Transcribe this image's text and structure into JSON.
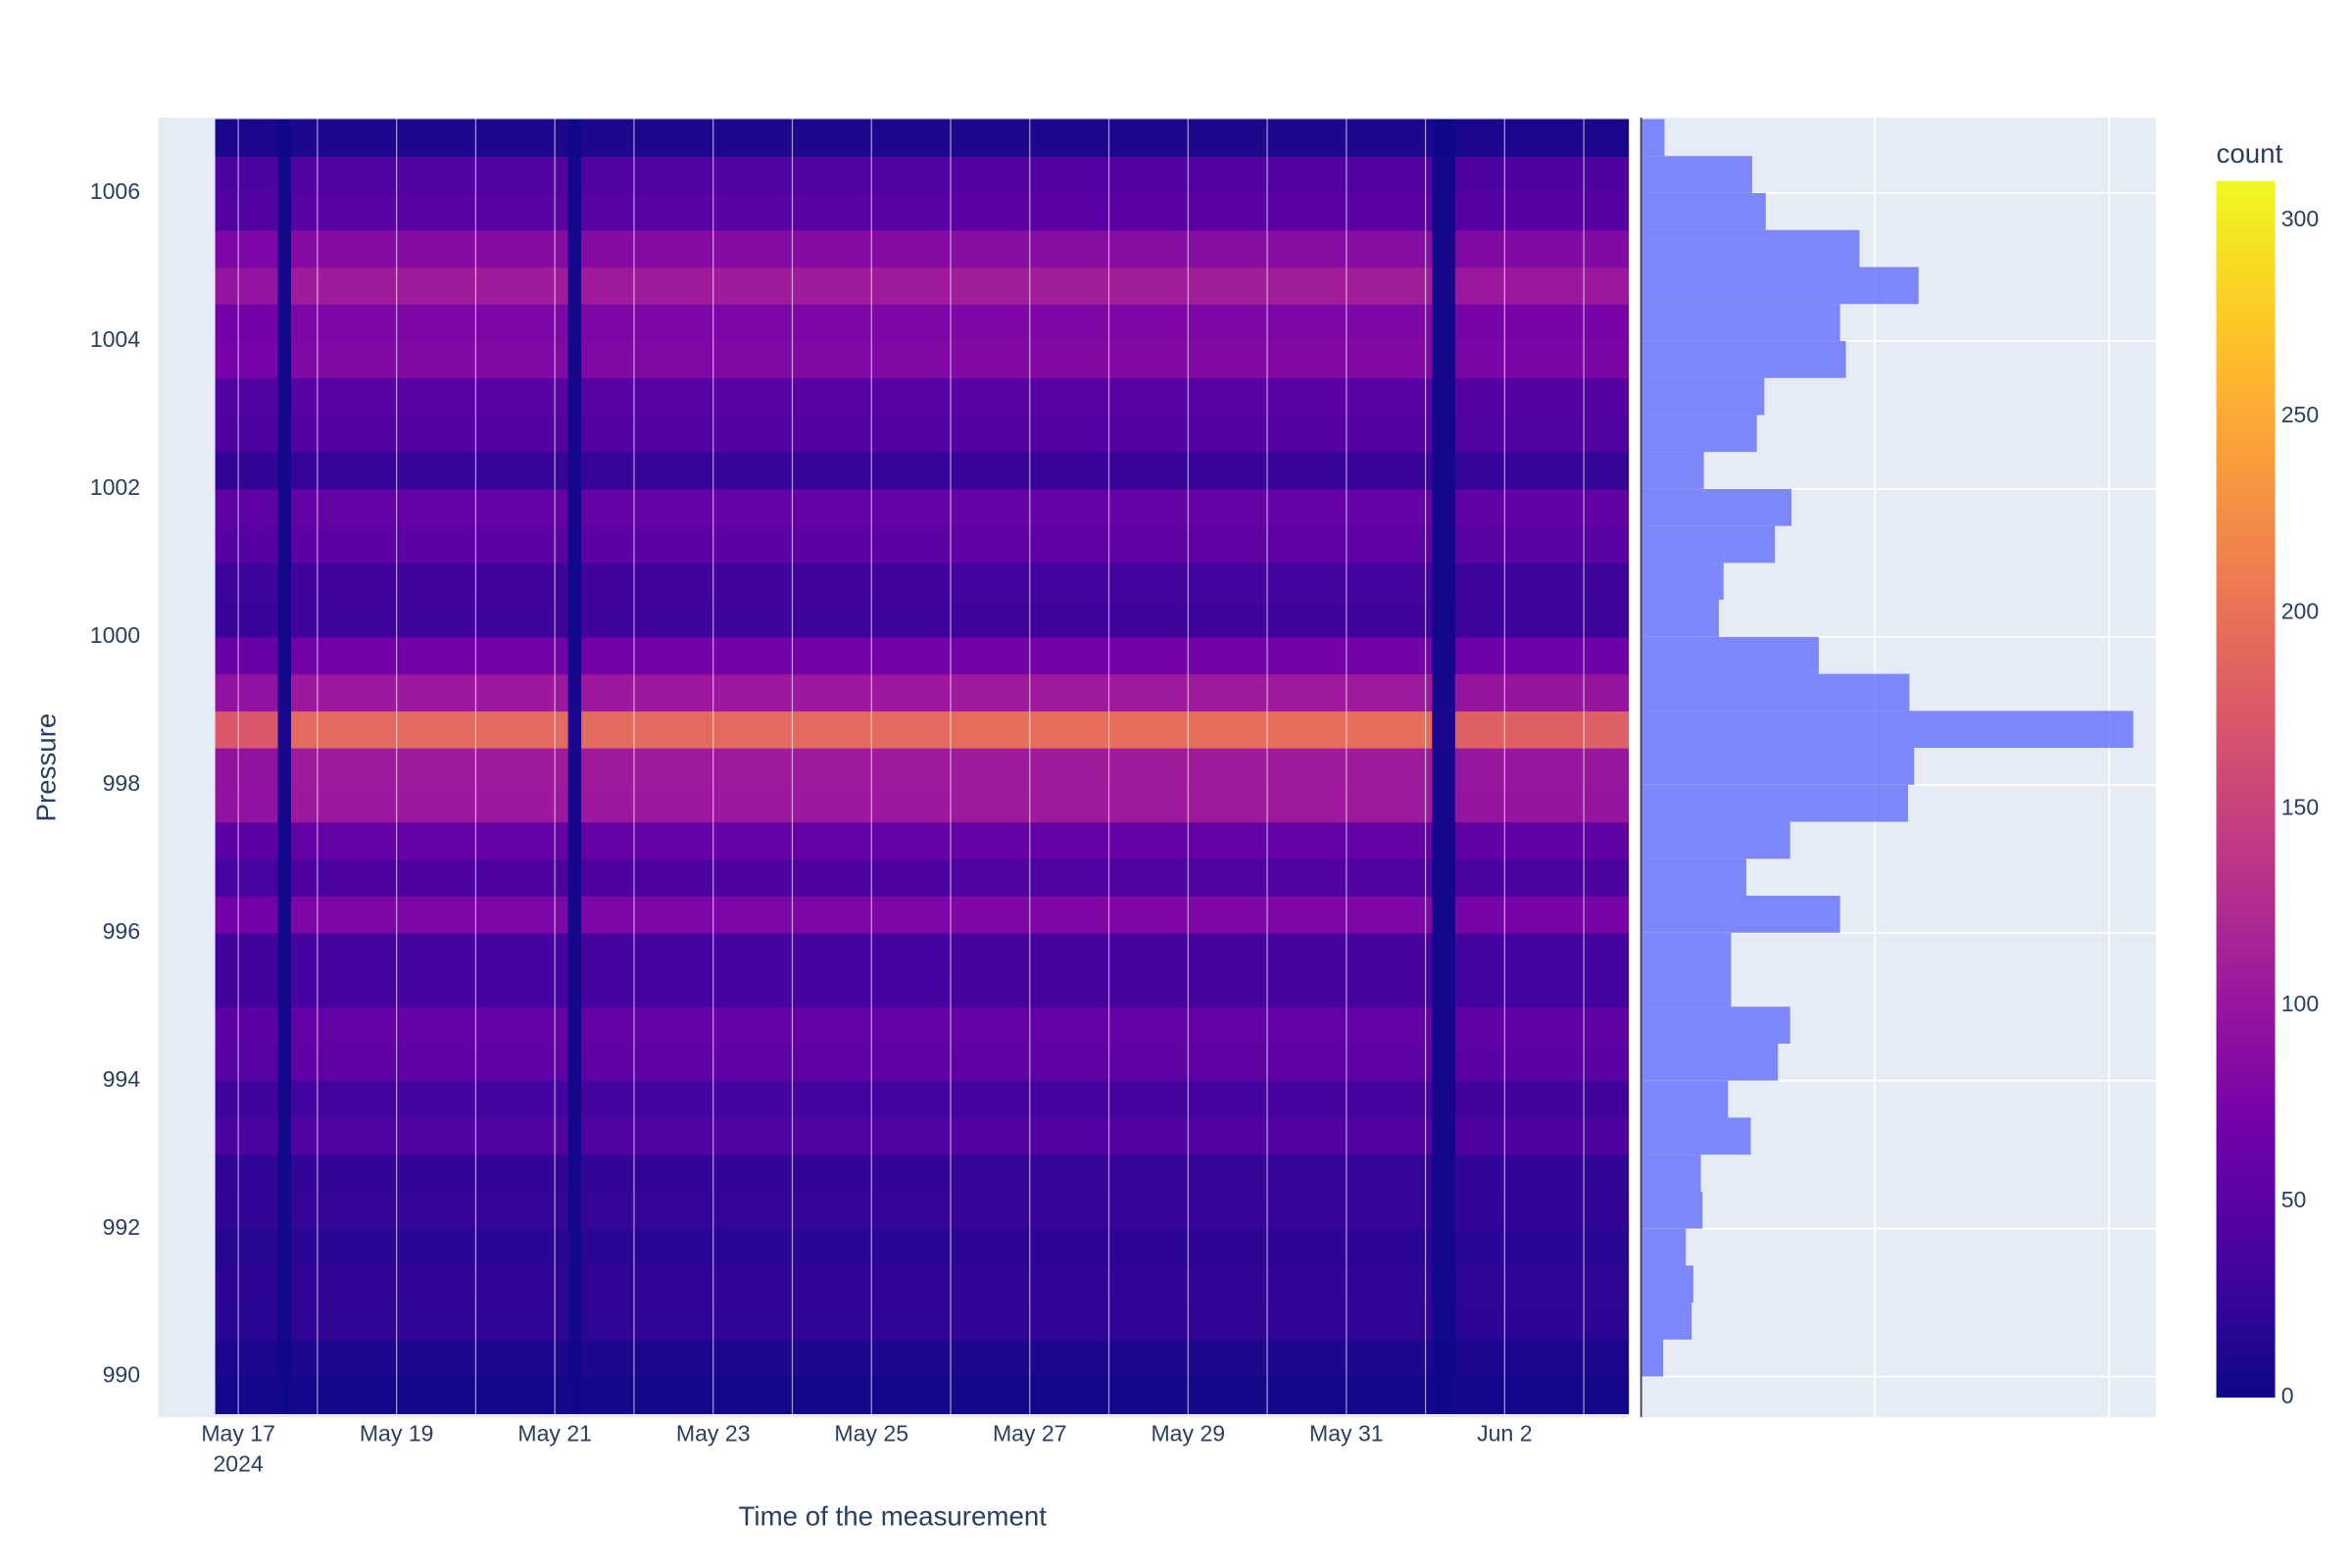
{
  "chart_data": [
    {
      "type": "heatmap",
      "x_title": "Time of the measurement",
      "y_title": "Pressure",
      "xlim": [
        "2024-05-15 23:45",
        "2024-06-03 13:30"
      ],
      "ylim": [
        989.45,
        1007.02
      ],
      "xticks": [
        {
          "value": "2024-05-17",
          "label": "May 17"
        },
        {
          "value": "2024-05-19",
          "label": "May 19"
        },
        {
          "value": "2024-05-21",
          "label": "May 21"
        },
        {
          "value": "2024-05-23",
          "label": "May 23"
        },
        {
          "value": "2024-05-25",
          "label": "May 25"
        },
        {
          "value": "2024-05-27",
          "label": "May 27"
        },
        {
          "value": "2024-05-29",
          "label": "May 29"
        },
        {
          "value": "2024-05-31",
          "label": "May 31"
        },
        {
          "value": "2024-06-02",
          "label": "Jun 2"
        }
      ],
      "x_year": "2024",
      "xgrid": [
        "2024-05-17",
        "2024-05-18",
        "2024-05-19",
        "2024-05-20",
        "2024-05-21",
        "2024-05-22",
        "2024-05-23",
        "2024-05-24",
        "2024-05-25",
        "2024-05-26",
        "2024-05-27",
        "2024-05-28",
        "2024-05-29",
        "2024-05-30",
        "2024-05-31",
        "2024-06-01",
        "2024-06-02",
        "2024-06-03"
      ],
      "yticks": [
        990,
        992,
        994,
        996,
        998,
        1000,
        1002,
        1004,
        1006
      ],
      "grid": true,
      "xbins": [
        "2024-05-16 17:00",
        "2024-05-17 12:00",
        "2024-05-17 16:00",
        "2024-05-21 04:00",
        "2024-05-21 08:00",
        "2024-05-26 00:00",
        "2024-06-01 02:00",
        "2024-06-01 09:00",
        "2024-06-03 13:30"
      ],
      "ybins": [
        989.5,
        990,
        990.5,
        991,
        991.5,
        992,
        992.5,
        993,
        993.5,
        994,
        994.5,
        995,
        995.5,
        996,
        996.5,
        997,
        997.5,
        998,
        998.5,
        999,
        999.5,
        1000,
        1000.5,
        1001,
        1001.5,
        1002,
        1002.5,
        1003,
        1003.5,
        1004,
        1004.5,
        1005,
        1005.5,
        1006,
        1006.5,
        1007
      ],
      "z": [
        [
          4,
          1,
          5,
          1,
          5,
          5,
          1,
          4
        ],
        [
          8,
          2,
          9,
          2,
          9,
          9,
          2,
          8
        ],
        [
          18,
          3,
          20,
          3,
          20,
          21,
          3,
          19
        ],
        [
          19,
          3,
          21,
          3,
          21,
          22,
          3,
          20
        ],
        [
          16,
          3,
          18,
          3,
          18,
          19,
          3,
          17
        ],
        [
          22,
          3,
          24,
          3,
          24,
          25,
          3,
          23
        ],
        [
          21,
          3,
          23,
          3,
          23,
          24,
          3,
          22
        ],
        [
          39,
          4,
          43,
          4,
          43,
          44,
          4,
          41
        ],
        [
          31,
          4,
          34,
          4,
          34,
          35,
          4,
          32
        ],
        [
          48,
          4,
          53,
          4,
          53,
          54,
          4,
          50
        ],
        [
          52,
          4,
          58,
          4,
          58,
          59,
          4,
          55
        ],
        [
          32,
          3,
          35,
          3,
          35,
          36,
          3,
          33
        ],
        [
          32,
          3,
          35,
          3,
          35,
          36,
          3,
          33
        ],
        [
          69,
          5,
          77,
          5,
          77,
          79,
          5,
          73
        ],
        [
          37,
          4,
          41,
          4,
          41,
          42,
          4,
          39
        ],
        [
          52,
          4,
          58,
          4,
          58,
          59,
          4,
          55
        ],
        [
          94,
          6,
          104,
          6,
          104,
          106,
          6,
          99
        ],
        [
          95,
          6,
          106,
          6,
          106,
          108,
          6,
          101
        ],
        [
          172,
          8,
          191,
          8,
          191,
          195,
          8,
          181
        ],
        [
          94,
          6,
          104,
          6,
          104,
          106,
          6,
          99
        ],
        [
          62,
          5,
          69,
          5,
          69,
          70,
          5,
          66
        ],
        [
          27,
          3,
          30,
          3,
          30,
          31,
          3,
          29
        ],
        [
          29,
          3,
          32,
          3,
          32,
          33,
          3,
          30
        ],
        [
          47,
          4,
          52,
          4,
          52,
          53,
          4,
          49
        ],
        [
          53,
          4,
          59,
          4,
          59,
          60,
          4,
          56
        ],
        [
          23,
          3,
          25,
          3,
          25,
          26,
          3,
          24
        ],
        [
          41,
          4,
          45,
          4,
          45,
          46,
          4,
          43
        ],
        [
          43,
          4,
          48,
          4,
          48,
          49,
          4,
          46
        ],
        [
          72,
          5,
          80,
          5,
          80,
          82,
          5,
          76
        ],
        [
          69,
          5,
          77,
          5,
          77,
          79,
          5,
          73
        ],
        [
          97,
          6,
          108,
          6,
          108,
          110,
          6,
          103
        ],
        [
          77,
          5,
          85,
          5,
          85,
          87,
          5,
          81
        ],
        [
          44,
          4,
          49,
          4,
          49,
          50,
          4,
          47
        ],
        [
          39,
          4,
          43,
          4,
          43,
          44,
          4,
          41
        ],
        [
          8,
          2,
          9,
          2,
          9,
          9,
          2,
          8
        ]
      ],
      "colorscale": [
        "#0d0887",
        "#46039f",
        "#7201a8",
        "#9c179e",
        "#bd3786",
        "#d8576b",
        "#ed7953",
        "#fb9f3a",
        "#fdca26",
        "#f0f921"
      ],
      "colorbar_title": "count",
      "clim": [
        0,
        310
      ],
      "cticks": [
        0,
        50,
        100,
        150,
        200,
        250,
        300
      ]
    },
    {
      "type": "histogram",
      "orientation": "h",
      "color": "#636efa",
      "opacity": 0.8,
      "bins": [
        990,
        990.5,
        991,
        991.5,
        992,
        992.5,
        993,
        993.5,
        994,
        994.5,
        995,
        995.5,
        996,
        996.5,
        997,
        997.5,
        998,
        998.5,
        999,
        999.5,
        1000,
        1000.5,
        1001,
        1001.5,
        1002,
        1002.5,
        1003,
        1003.5,
        1004,
        1004.5,
        1005,
        1005.5,
        1006,
        1006.5,
        1007
      ],
      "values": [
        970,
        2190,
        2260,
        1940,
        2650,
        2580,
        4710,
        3740,
        5870,
        6390,
        3870,
        3870,
        8520,
        4520,
        6390,
        11420,
        11680,
        21030,
        11480,
        7610,
        3350,
        3550,
        5740,
        6450,
        2710,
        4970,
        5290,
        8770,
        8520,
        11870,
        9350,
        5350,
        4770,
        1030
      ],
      "xlim": [
        0,
        22000
      ],
      "xgrid": [
        10000,
        20000
      ]
    }
  ]
}
